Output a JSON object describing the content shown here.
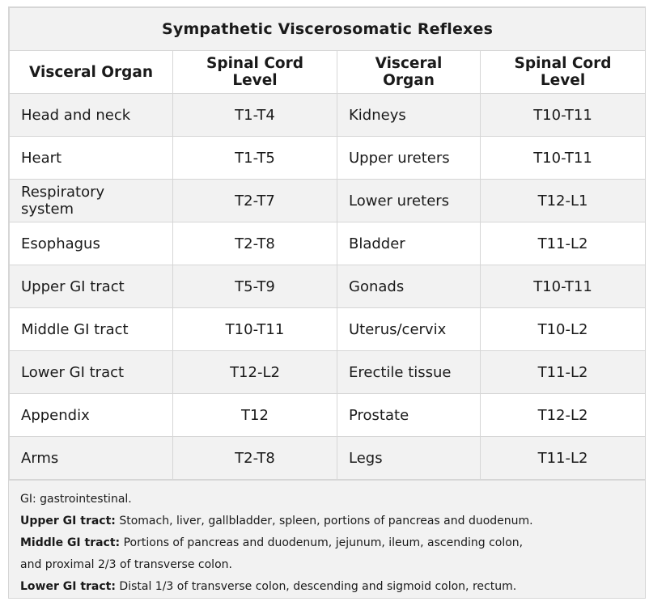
{
  "title": "Sympathetic Viscerosomatic Reflexes",
  "headers": [
    "Visceral Organ",
    "Spinal Cord Level",
    "Visceral Organ",
    "Spinal Cord Level"
  ],
  "rows": [
    {
      "organ1": "Head and neck",
      "level1": "T1-T4",
      "organ2": "Kidneys",
      "level2": "T10-T11"
    },
    {
      "organ1": "Heart",
      "level1": "T1-T5",
      "organ2": "Upper ureters",
      "level2": "T10-T11"
    },
    {
      "organ1": "Respiratory system",
      "level1": "T2-T7",
      "organ2": "Lower ureters",
      "level2": "T12-L1"
    },
    {
      "organ1": "Esophagus",
      "level1": "T2-T8",
      "organ2": "Bladder",
      "level2": "T11-L2"
    },
    {
      "organ1": "Upper GI tract",
      "level1": "T5-T9",
      "organ2": "Gonads",
      "level2": "T10-T11"
    },
    {
      "organ1": "Middle GI tract",
      "level1": "T10-T11",
      "organ2": "Uterus/cervix",
      "level2": "T10-L2"
    },
    {
      "organ1": "Lower GI tract",
      "level1": "T12-L2",
      "organ2": "Erectile tissue",
      "level2": "T11-L2"
    },
    {
      "organ1": "Appendix",
      "level1": "T12",
      "organ2": "Prostate",
      "level2": "T12-L2"
    },
    {
      "organ1": "Arms",
      "level1": "T2-T8",
      "organ2": "Legs",
      "level2": "T11-L2"
    }
  ],
  "notes": {
    "gi": "GI: gastrointestinal.",
    "upper_label": "Upper GI tract:",
    "upper_text": " Stomach, liver, gallbladder, spleen, portions of pancreas and duodenum.",
    "middle_label": "Middle GI tract:",
    "middle_text": " Portions of pancreas and duodenum, jejunum, ileum, ascending colon,",
    "middle_text2": "and proximal 2/3 of transverse colon.",
    "lower_label": "Lower GI tract:",
    "lower_text": " Distal 1/3 of transverse colon, descending and sigmoid colon, rectum."
  }
}
